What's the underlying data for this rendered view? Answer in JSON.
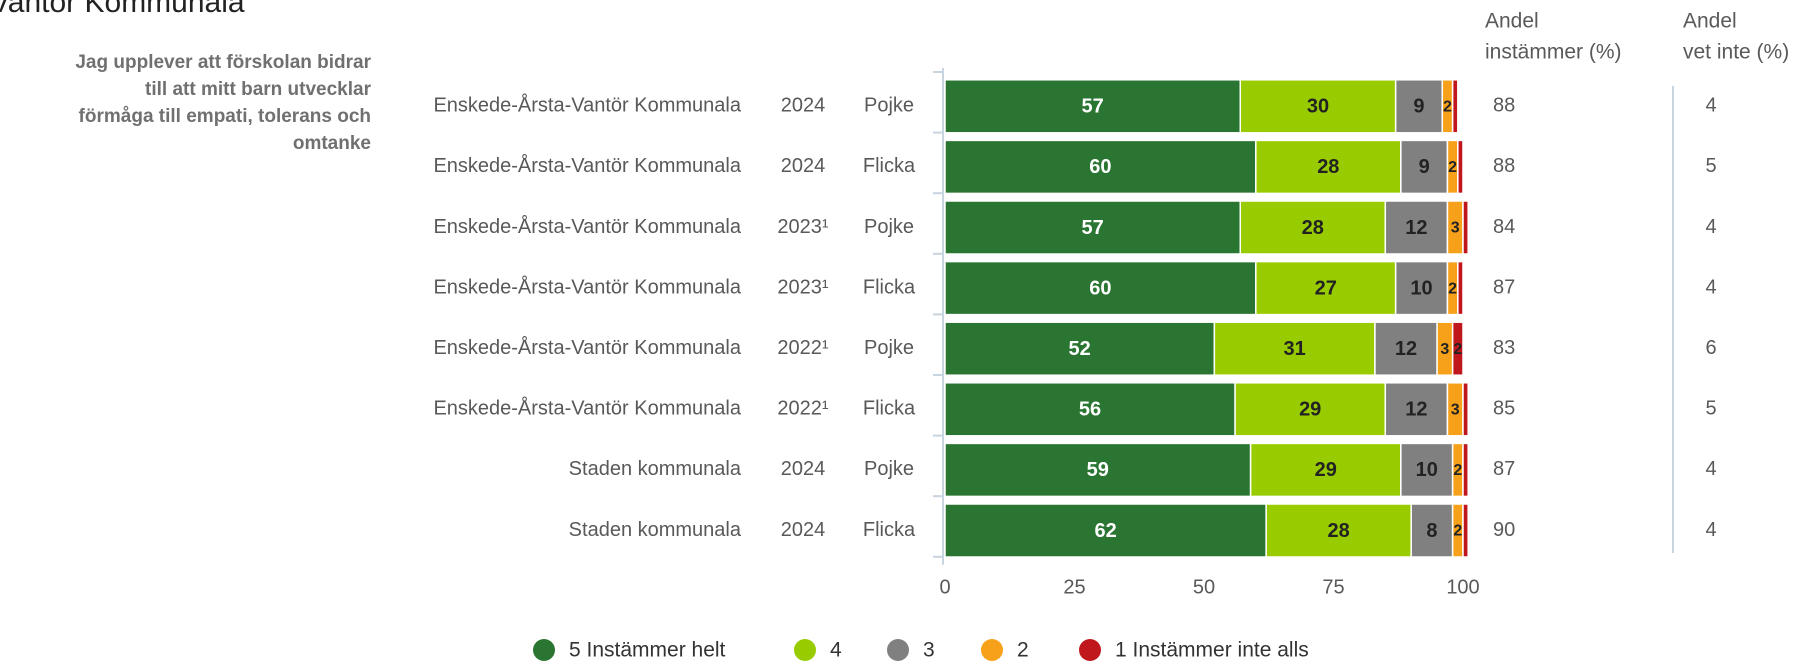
{
  "chart_data": {
    "type": "bar",
    "orientation": "horizontal",
    "stacked": true,
    "title": "Vantör Kommunala",
    "subtitle": [
      "Jag upplever att förskolan bidrar",
      "till att mitt barn utvecklar",
      "förmåga till empati, tolerans och",
      "omtanke"
    ],
    "categories": [
      "Enskede-Årsta-Vantör Kommunala",
      "Enskede-Årsta-Vantör Kommunala",
      "Enskede-Årsta-Vantör Kommunala",
      "Enskede-Årsta-Vantör Kommunala",
      "Enskede-Årsta-Vantör Kommunala",
      "Enskede-Årsta-Vantör Kommunala",
      "Staden kommunala",
      "Staden kommunala"
    ],
    "years": [
      "2024",
      "2024",
      "2023¹",
      "2023¹",
      "2022¹",
      "2022¹",
      "2024",
      "2024"
    ],
    "groups": [
      "Pojke",
      "Flicka",
      "Pojke",
      "Flicka",
      "Pojke",
      "Flicka",
      "Pojke",
      "Flicka"
    ],
    "series": [
      {
        "name": "5 Instämmer helt",
        "color": "#2a7531",
        "values": [
          57,
          60,
          57,
          60,
          52,
          56,
          59,
          62
        ]
      },
      {
        "name": "4",
        "color": "#99cc00",
        "values": [
          30,
          28,
          28,
          27,
          31,
          29,
          29,
          28
        ]
      },
      {
        "name": "3",
        "color": "#808080",
        "values": [
          9,
          9,
          12,
          10,
          12,
          12,
          10,
          8
        ]
      },
      {
        "name": "2",
        "color": "#f7a11a",
        "values": [
          2,
          2,
          3,
          2,
          3,
          3,
          2,
          2
        ]
      },
      {
        "name": "1 Instämmer inte alls",
        "color": "#c0171d",
        "values": [
          1,
          1,
          1,
          1,
          2,
          1,
          1,
          1
        ]
      }
    ],
    "columns": [
      {
        "header": [
          "Andel",
          "instämmer (%)"
        ],
        "values": [
          88,
          88,
          84,
          87,
          83,
          85,
          87,
          90
        ]
      },
      {
        "header": [
          "Andel",
          "vet inte (%)"
        ],
        "values": [
          4,
          5,
          4,
          4,
          6,
          5,
          4,
          4
        ]
      }
    ],
    "xlim": [
      0,
      100
    ],
    "xticks": [
      0,
      25,
      50,
      75,
      100
    ],
    "legend": "bottom"
  }
}
